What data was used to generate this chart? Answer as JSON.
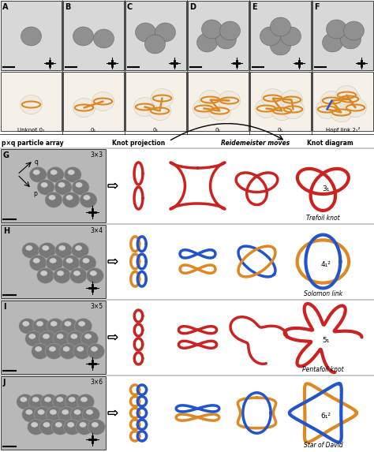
{
  "bg_color": "#ffffff",
  "panel_labels_top": [
    "A",
    "B",
    "C",
    "D",
    "E",
    "F"
  ],
  "panel_labels_bot": [
    "G",
    "H",
    "I",
    "J"
  ],
  "row_tags": [
    "3×3",
    "3×4",
    "3×5",
    "3×6"
  ],
  "top_labels": [
    "Unknot 0₁",
    "0₁",
    "0₁",
    "0₁",
    "0₁",
    "Hopf link 2₁²"
  ],
  "col_headers_left": "p×q particle array",
  "col_header_kp": "Knot projection",
  "col_header_rm": "Reidemeister moves",
  "col_header_kd": "Knot diagram",
  "knot_labels": [
    "3₁",
    "4₁²",
    "5₁",
    "6₁²"
  ],
  "knot_names": [
    "Trefoil knot",
    "Solomon link",
    "Pentafoil knot",
    "Star of David"
  ],
  "red_color": "#cc2222",
  "blue_color": "#2255cc",
  "orange_color": "#dd8822",
  "gray_mic": "#b0b0b0",
  "gray_light": "#d8d8d8",
  "cream": "#f5f0e8"
}
